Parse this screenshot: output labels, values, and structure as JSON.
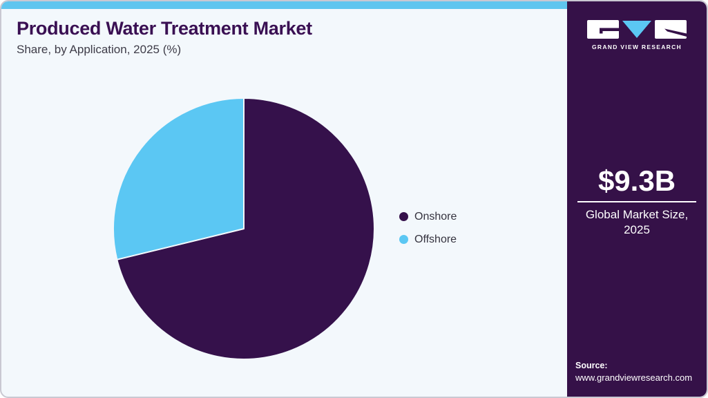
{
  "header": {
    "title": "Produced Water Treatment Market",
    "subtitle": "Share, by Application, 2025 (%)"
  },
  "chart_data": {
    "type": "pie",
    "title": "Produced Water Treatment Market Share, by Application, 2025 (%)",
    "categories": [
      "Onshore",
      "Offshore"
    ],
    "values": [
      71.2,
      28.8
    ],
    "colors": [
      "#35114B",
      "#5BC7F3"
    ],
    "start_angle_deg": 0,
    "direction": "clockwise",
    "legend_position": "right",
    "data_labels_shown": false
  },
  "sidebar": {
    "brand": {
      "name": "GRAND VIEW RESEARCH"
    },
    "market_size": {
      "value": "$9.3B",
      "label_line1": "Global Market Size,",
      "label_line2": "2025"
    },
    "source": {
      "label": "Source:",
      "url": "www.grandviewresearch.com"
    }
  },
  "theme": {
    "accent_blue": "#5FC5EF",
    "dark_purple": "#351148",
    "page_background": "#F3F8FC",
    "title_color": "#3A1053",
    "border_color": "#C9C8D2"
  }
}
